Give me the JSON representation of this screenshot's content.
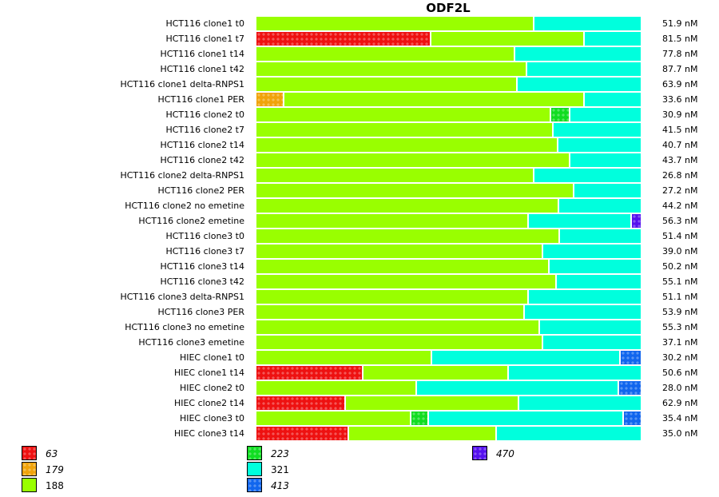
{
  "chart_data": {
    "type": "bar",
    "stacked": true,
    "orientation": "horizontal",
    "normalized": true,
    "title": "ODF2L",
    "xlabel": "",
    "ylabel": "",
    "value_unit": "nM",
    "legend_position": "bottom-left",
    "legend": [
      {
        "key": "63",
        "label": "63",
        "color": "#ee1111",
        "patterned": true,
        "italic": true
      },
      {
        "key": "179",
        "label": "179",
        "color": "#f0a30a",
        "patterned": true,
        "italic": true
      },
      {
        "key": "188",
        "label": "188",
        "color": "#99ff00",
        "patterned": false,
        "italic": false
      },
      {
        "key": "223",
        "label": "223",
        "color": "#11dd22",
        "patterned": true,
        "italic": true
      },
      {
        "key": "321",
        "label": "321",
        "color": "#00ffdd",
        "patterned": false,
        "italic": false
      },
      {
        "key": "413",
        "label": "413",
        "color": "#1166ee",
        "patterned": true,
        "italic": true
      },
      {
        "key": "470",
        "label": "470",
        "color": "#5511ee",
        "patterned": true,
        "italic": true
      }
    ],
    "categories": [
      "HCT116 clone1 t0",
      "HCT116 clone1 t7",
      "HCT116 clone1 t14",
      "HCT116 clone1 t42",
      "HCT116 clone1 delta-RNPS1",
      "HCT116 clone1 PER",
      "HCT116 clone2 t0",
      "HCT116 clone2 t7",
      "HCT116 clone2 t14",
      "HCT116 clone2 t42",
      "HCT116 clone2 delta-RNPS1",
      "HCT116 clone2 PER",
      "HCT116 clone2 no emetine",
      "HCT116 clone2 emetine",
      "HCT116 clone3 t0",
      "HCT116 clone3 t7",
      "HCT116 clone3 t14",
      "HCT116 clone3 t42",
      "HCT116 clone3 delta-RNPS1",
      "HCT116 clone3 PER",
      "HCT116 clone3 no emetine",
      "HCT116 clone3 emetine",
      "HIEC clone1 t0",
      "HIEC clone1 t14",
      "HIEC clone2 t0",
      "HIEC clone2 t14",
      "HIEC clone3 t0",
      "HIEC clone3 t14"
    ],
    "totals": [
      "51.9 nM",
      "81.5 nM",
      "77.8 nM",
      "87.7 nM",
      "63.9 nM",
      "33.6 nM",
      "30.9 nM",
      "41.5 nM",
      "40.7 nM",
      "43.7 nM",
      "26.8 nM",
      "27.2 nM",
      "44.2 nM",
      "56.3 nM",
      "51.4 nM",
      "39.0 nM",
      "50.2 nM",
      "55.1 nM",
      "51.1 nM",
      "53.9 nM",
      "55.3 nM",
      "37.1 nM",
      "30.2 nM",
      "50.6 nM",
      "28.0 nM",
      "62.9 nM",
      "35.4 nM",
      "35.0 nM"
    ],
    "series": [
      {
        "name": "63",
        "values": [
          0,
          45.6,
          0,
          0,
          0,
          0,
          0,
          0,
          0,
          0,
          0,
          0,
          0,
          0,
          0,
          0,
          0,
          0,
          0,
          0,
          0,
          0,
          0,
          27.9,
          0,
          23.3,
          0,
          24.2
        ]
      },
      {
        "name": "179",
        "values": [
          0,
          0,
          0,
          0,
          0,
          7.3,
          0,
          0,
          0,
          0,
          0,
          0,
          0,
          0,
          0,
          0,
          0,
          0,
          0,
          0,
          0,
          0,
          0,
          0,
          0,
          0,
          0,
          0
        ]
      },
      {
        "name": "188",
        "values": [
          72.3,
          39.8,
          67.3,
          70.4,
          67.9,
          78.1,
          76.7,
          77.3,
          78.5,
          81.7,
          72.3,
          82.7,
          78.8,
          70.8,
          79.0,
          74.6,
          76.3,
          78.1,
          70.8,
          69.8,
          73.8,
          74.6,
          45.8,
          37.7,
          41.7,
          45.0,
          40.4,
          38.3
        ]
      },
      {
        "name": "223",
        "values": [
          0,
          0,
          0,
          0,
          0,
          0,
          5.0,
          0,
          0,
          0,
          0,
          0,
          0,
          0,
          0,
          0,
          0,
          0,
          0,
          0,
          0,
          0,
          0,
          0,
          0,
          0,
          4.6,
          0
        ]
      },
      {
        "name": "321",
        "values": [
          27.7,
          14.6,
          32.7,
          29.6,
          32.1,
          14.6,
          18.3,
          22.7,
          21.5,
          18.3,
          27.7,
          17.3,
          21.2,
          26.9,
          21.0,
          25.4,
          23.7,
          21.9,
          29.2,
          30.2,
          26.2,
          25.4,
          49.0,
          34.4,
          52.7,
          31.7,
          50.6,
          37.5
        ]
      },
      {
        "name": "413",
        "values": [
          0,
          0,
          0,
          0,
          0,
          0,
          0,
          0,
          0,
          0,
          0,
          0,
          0,
          0,
          0,
          0,
          0,
          0,
          0,
          0,
          0,
          0,
          5.2,
          0,
          5.6,
          0,
          4.4,
          0
        ]
      },
      {
        "name": "470",
        "values": [
          0,
          0,
          0,
          0,
          0,
          0,
          0,
          0,
          0,
          0,
          0,
          0,
          0,
          2.3,
          0,
          0,
          0,
          0,
          0,
          0,
          0,
          0,
          0,
          0,
          0,
          0,
          0,
          0
        ]
      }
    ],
    "xlim": [
      0,
      100
    ],
    "grid": false
  }
}
